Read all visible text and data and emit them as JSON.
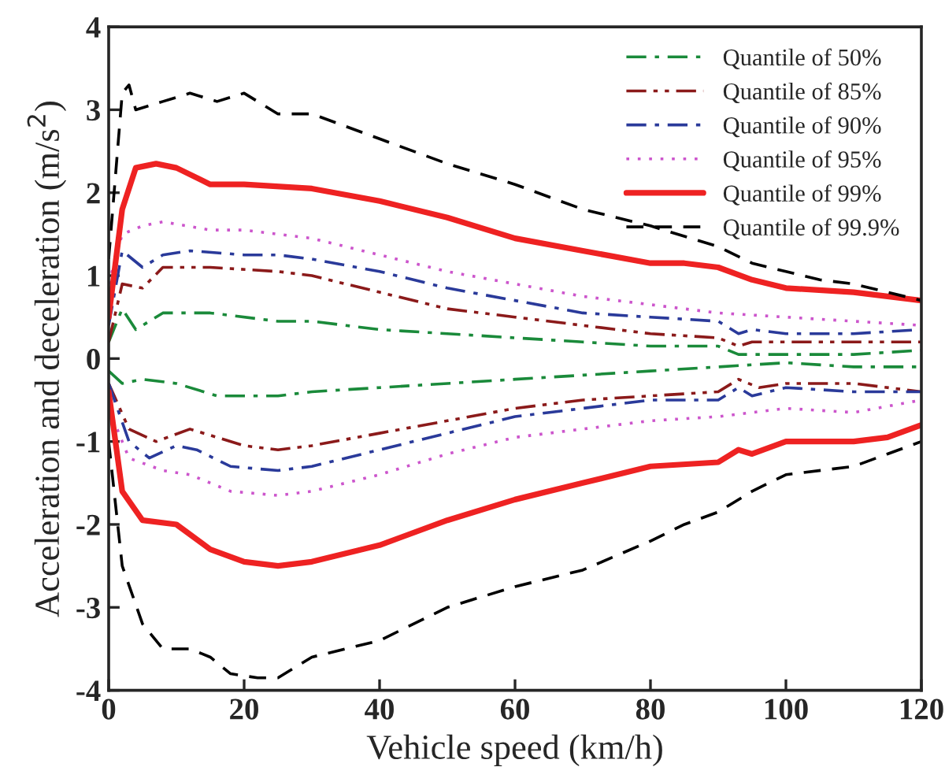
{
  "chart_data": {
    "type": "line",
    "xlabel": "Vehicle speed (km/h)",
    "ylabel": "Acceleration and deceleration (m/s$^{2}$)",
    "xlim": [
      0,
      120
    ],
    "ylim": [
      -4,
      4
    ],
    "xticks": [
      0,
      20,
      40,
      60,
      80,
      100,
      120
    ],
    "yticks": [
      -4,
      -3,
      -2,
      -1,
      0,
      1,
      2,
      3,
      4
    ],
    "grid": false,
    "legend": "top right",
    "series": [
      {
        "name": "Quantile of 50%",
        "color": "#1a8a3a",
        "line_style": "dashdot",
        "x": [
          0,
          2,
          4,
          8,
          15,
          25,
          30,
          40,
          50,
          60,
          70,
          80,
          90,
          93,
          100,
          110,
          120
        ],
        "values": [
          0.2,
          0.6,
          0.35,
          0.55,
          0.55,
          0.45,
          0.45,
          0.35,
          0.3,
          0.25,
          0.2,
          0.15,
          0.15,
          0.05,
          0.05,
          0.05,
          0.1
        ]
      },
      {
        "name": "Quantile of 85%",
        "color": "#8b1a1a",
        "line_style": "dashdotdot",
        "x": [
          0,
          2,
          5,
          8,
          15,
          25,
          30,
          40,
          50,
          60,
          70,
          80,
          90,
          93,
          95,
          100,
          110,
          120
        ],
        "values": [
          0.2,
          0.9,
          0.85,
          1.1,
          1.1,
          1.05,
          1.0,
          0.8,
          0.6,
          0.5,
          0.4,
          0.3,
          0.25,
          0.15,
          0.2,
          0.2,
          0.2,
          0.2
        ]
      },
      {
        "name": "Quantile of 90%",
        "color": "#2a3a9a",
        "line_style": "dashdot",
        "x": [
          0,
          2,
          5,
          8,
          12,
          20,
          25,
          30,
          40,
          50,
          60,
          70,
          80,
          90,
          93,
          95,
          100,
          110,
          120
        ],
        "values": [
          0.4,
          1.3,
          1.1,
          1.25,
          1.3,
          1.25,
          1.25,
          1.2,
          1.05,
          0.85,
          0.7,
          0.55,
          0.5,
          0.45,
          0.3,
          0.35,
          0.3,
          0.3,
          0.35
        ]
      },
      {
        "name": "Quantile of 95%",
        "color": "#cc55cc",
        "line_style": "dotted",
        "x": [
          0,
          2,
          5,
          8,
          15,
          20,
          30,
          40,
          50,
          60,
          70,
          80,
          90,
          100,
          110,
          120
        ],
        "values": [
          0.9,
          1.5,
          1.6,
          1.65,
          1.55,
          1.55,
          1.45,
          1.25,
          1.05,
          0.9,
          0.75,
          0.65,
          0.55,
          0.5,
          0.45,
          0.4
        ]
      },
      {
        "name": "Quantile of 99%",
        "color": "#ee2222",
        "line_style": "solid",
        "x": [
          0,
          2,
          4,
          7,
          10,
          15,
          20,
          30,
          40,
          50,
          60,
          70,
          80,
          85,
          90,
          95,
          100,
          110,
          115,
          120
        ],
        "values": [
          0.5,
          1.8,
          2.3,
          2.35,
          2.3,
          2.1,
          2.1,
          2.05,
          1.9,
          1.7,
          1.45,
          1.3,
          1.15,
          1.15,
          1.1,
          0.95,
          0.85,
          0.8,
          0.75,
          0.7
        ]
      },
      {
        "name": "Quantile of 99.9%",
        "color": "#000000",
        "line_style": "dashed",
        "x": [
          0,
          1,
          2,
          3,
          4,
          8,
          12,
          16,
          20,
          25,
          30,
          35,
          40,
          50,
          60,
          70,
          80,
          90,
          95,
          100,
          105,
          110,
          115,
          120
        ],
        "values": [
          1.2,
          2.2,
          3.2,
          3.3,
          3.0,
          3.1,
          3.2,
          3.1,
          3.2,
          2.95,
          2.95,
          2.8,
          2.65,
          2.35,
          2.1,
          1.8,
          1.6,
          1.35,
          1.15,
          1.05,
          0.95,
          0.9,
          0.8,
          0.7
        ]
      },
      {
        "color": "#1a8a3a",
        "line_style": "dashdot",
        "x": [
          0,
          2,
          5,
          10,
          16,
          25,
          30,
          40,
          50,
          60,
          70,
          80,
          90,
          100,
          110,
          120
        ],
        "values": [
          -0.15,
          -0.3,
          -0.25,
          -0.3,
          -0.45,
          -0.45,
          -0.4,
          -0.35,
          -0.3,
          -0.25,
          -0.2,
          -0.15,
          -0.1,
          -0.05,
          -0.1,
          -0.1
        ]
      },
      {
        "color": "#8b1a1a",
        "line_style": "dashdotdot",
        "x": [
          0,
          3,
          7,
          12,
          16,
          20,
          25,
          30,
          40,
          50,
          60,
          70,
          80,
          90,
          93,
          96,
          100,
          110,
          120
        ],
        "values": [
          -0.3,
          -0.85,
          -1.0,
          -0.85,
          -0.95,
          -1.05,
          -1.1,
          -1.05,
          -0.9,
          -0.75,
          -0.6,
          -0.5,
          -0.45,
          -0.4,
          -0.25,
          -0.35,
          -0.3,
          -0.3,
          -0.4
        ]
      },
      {
        "color": "#2a3a9a",
        "line_style": "dashdot",
        "x": [
          0,
          3,
          6,
          10,
          13,
          18,
          25,
          30,
          40,
          50,
          60,
          70,
          80,
          90,
          93,
          95,
          100,
          110,
          120
        ],
        "values": [
          -0.3,
          -1.0,
          -1.2,
          -1.05,
          -1.1,
          -1.3,
          -1.35,
          -1.3,
          -1.1,
          -0.9,
          -0.7,
          -0.6,
          -0.5,
          -0.5,
          -0.35,
          -0.45,
          -0.35,
          -0.4,
          -0.4
        ]
      },
      {
        "color": "#cc55cc",
        "line_style": "dotted",
        "x": [
          0,
          3,
          8,
          12,
          18,
          25,
          30,
          40,
          50,
          60,
          70,
          80,
          90,
          100,
          110,
          120
        ],
        "values": [
          -0.6,
          -1.2,
          -1.35,
          -1.4,
          -1.6,
          -1.65,
          -1.6,
          -1.4,
          -1.15,
          -0.95,
          -0.85,
          -0.75,
          -0.7,
          -0.6,
          -0.65,
          -0.5
        ]
      },
      {
        "color": "#ee2222",
        "line_style": "solid",
        "x": [
          0,
          2,
          5,
          10,
          15,
          20,
          25,
          30,
          40,
          50,
          60,
          70,
          80,
          90,
          93,
          95,
          100,
          110,
          115,
          120
        ],
        "values": [
          -0.4,
          -1.6,
          -1.95,
          -2.0,
          -2.3,
          -2.45,
          -2.5,
          -2.45,
          -2.25,
          -1.95,
          -1.7,
          -1.5,
          -1.3,
          -1.25,
          -1.1,
          -1.15,
          -1.0,
          -1.0,
          -0.95,
          -0.8
        ]
      },
      {
        "color": "#000000",
        "line_style": "dashed",
        "x": [
          0,
          2,
          5,
          8,
          12,
          15,
          18,
          22,
          25,
          30,
          35,
          40,
          50,
          60,
          70,
          80,
          85,
          90,
          95,
          100,
          110,
          115,
          120
        ],
        "values": [
          -1.0,
          -2.5,
          -3.2,
          -3.5,
          -3.5,
          -3.6,
          -3.8,
          -3.85,
          -3.85,
          -3.6,
          -3.5,
          -3.4,
          -3.0,
          -2.75,
          -2.55,
          -2.2,
          -2.0,
          -1.85,
          -1.6,
          -1.4,
          -1.3,
          -1.15,
          -1.0
        ]
      }
    ]
  }
}
